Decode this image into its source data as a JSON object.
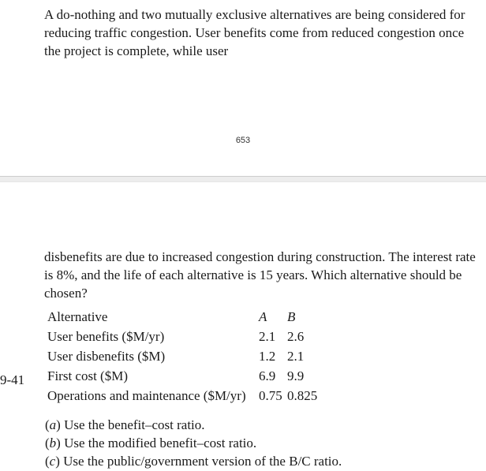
{
  "page_number": "653",
  "problem_number": "9-41",
  "paragraph_top": "A do-nothing and two mutually exclusive alternatives are being considered for reducing traffic congestion. User benefits come from reduced congestion once the project is complete, while user",
  "paragraph_bottom": "disbenefits are due to increased congestion during construction. The interest rate is 8%, and the life of each alternative is 15 years. Which alternative should be chosen?",
  "table": {
    "header_label": "Alternative",
    "col_a": "A",
    "col_b": "B",
    "rows": [
      {
        "label": "User benefits ($M/yr)",
        "a": "2.1",
        "b": "2.6"
      },
      {
        "label": "User disbenefits ($M)",
        "a": "1.2",
        "b": "2.1"
      },
      {
        "label": "First cost ($M)",
        "a": "6.9",
        "b": "9.9"
      },
      {
        "label": "Operations and maintenance ($M/yr)",
        "a": "0.75",
        "b": "0.825"
      }
    ]
  },
  "subparts": {
    "a_prefix": "(",
    "a_letter": "a",
    "a_suffix": ") Use the benefit–cost ratio.",
    "b_prefix": "(",
    "b_letter": "b",
    "b_suffix": ") Use the modified benefit–cost ratio.",
    "c_prefix": "(",
    "c_letter": "c",
    "c_suffix": ") Use the public/government version of the B/C ratio."
  }
}
